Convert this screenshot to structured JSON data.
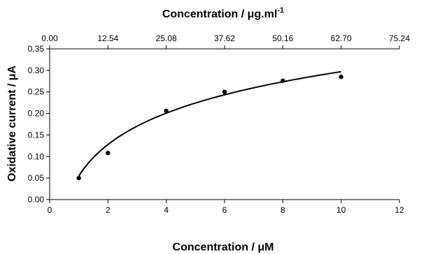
{
  "chart_data": {
    "type": "scatter",
    "xlabel_bottom": "Concentration / μM",
    "xlabel_top_main": "Concentration / μg.ml",
    "xlabel_top_sup": "-1",
    "ylabel": "Oxidative current / μA",
    "xlim": [
      0,
      12
    ],
    "ylim": [
      0,
      0.35
    ],
    "x_ticks": [
      "0",
      "2",
      "4",
      "6",
      "8",
      "10",
      "12"
    ],
    "y_ticks": [
      "0.00",
      "0.05",
      "0.10",
      "0.15",
      "0.20",
      "0.25",
      "0.30",
      "0.35"
    ],
    "top_ticks": [
      "0.00",
      "12.54",
      "25.08",
      "37.62",
      "50.16",
      "62.70",
      "75.24"
    ],
    "grid": false,
    "legend": "none",
    "series": [
      {
        "x": [
          1,
          2,
          4,
          6,
          8,
          10
        ],
        "y": [
          0.05,
          0.108,
          0.206,
          0.25,
          0.276,
          0.285
        ]
      }
    ],
    "fit_curve": {
      "form": "logarithmic",
      "x_range": [
        1,
        10
      ],
      "y_at_start": 0.055,
      "y_at_end": 0.297
    },
    "colors": {
      "marker": "#000000",
      "line": "#000000"
    }
  }
}
